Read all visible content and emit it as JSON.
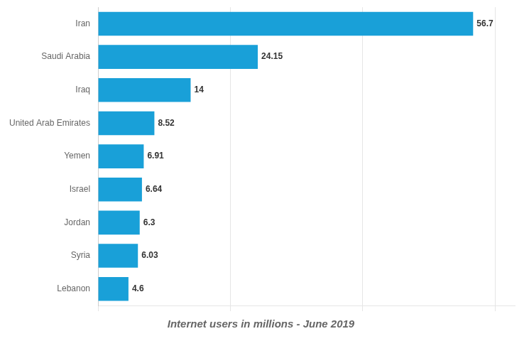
{
  "chart_data": {
    "type": "bar",
    "orientation": "horizontal",
    "title": "Internet users in millions - June 2019",
    "categories": [
      "Iran",
      "Saudi Arabia",
      "Iraq",
      "United Arab Emirates",
      "Yemen",
      "Israel",
      "Jordan",
      "Syria",
      "Lebanon"
    ],
    "values": [
      56.7,
      24.15,
      14,
      8.52,
      6.91,
      6.64,
      6.3,
      6.03,
      4.6
    ],
    "color": "#19a0d8",
    "xlim": [
      0,
      63
    ],
    "xticks": [
      0,
      20,
      40,
      60
    ],
    "grid": true,
    "data_labels": true,
    "tick_labels": "y"
  }
}
